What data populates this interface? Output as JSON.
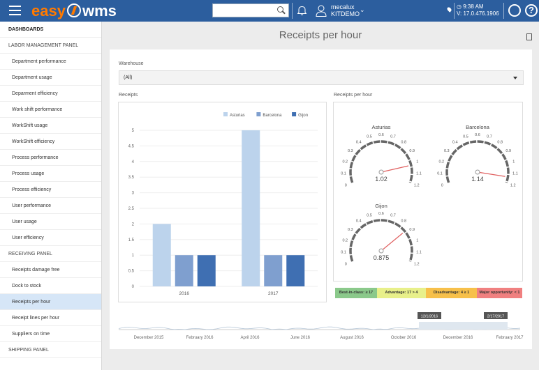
{
  "topbar": {
    "logo_easy": "easy",
    "logo_wms": "wms",
    "user_name": "mecalux",
    "user_company": "KITDEMO",
    "time": "9:38 AM",
    "version": "V: 17.0.476.1906"
  },
  "sidebar": {
    "items": [
      {
        "label": "DASHBOARDS",
        "kind": "header"
      },
      {
        "label": "LABOR MANAGEMENT PANEL",
        "kind": "section"
      },
      {
        "label": "Department performance",
        "kind": "item"
      },
      {
        "label": "Department usage",
        "kind": "item"
      },
      {
        "label": "Deparment efficiency",
        "kind": "item"
      },
      {
        "label": "Work shift performance",
        "kind": "item"
      },
      {
        "label": "WorkShift usage",
        "kind": "item"
      },
      {
        "label": "WorkShift efficiency",
        "kind": "item"
      },
      {
        "label": "Process performance",
        "kind": "item"
      },
      {
        "label": "Process usage",
        "kind": "item"
      },
      {
        "label": "Process efficiency",
        "kind": "item"
      },
      {
        "label": "User performance",
        "kind": "item"
      },
      {
        "label": "User usage",
        "kind": "item"
      },
      {
        "label": "User efficiency",
        "kind": "item"
      },
      {
        "label": "RECEIVING PANEL",
        "kind": "section"
      },
      {
        "label": "Receipts damage free",
        "kind": "item"
      },
      {
        "label": "Dock to stock",
        "kind": "item"
      },
      {
        "label": "Receipts per hour",
        "kind": "item",
        "active": true
      },
      {
        "label": "Receipt lines per hour",
        "kind": "item"
      },
      {
        "label": "Suppliers on time",
        "kind": "item"
      },
      {
        "label": "SHIPPING PANEL",
        "kind": "section"
      }
    ]
  },
  "main": {
    "title": "Receipts per hour",
    "warehouse_label": "Warehouse",
    "warehouse_value": "(All)",
    "receipts_label": "Receipts",
    "gauges_label": "Receipts per hour"
  },
  "chart_data": [
    {
      "type": "bar",
      "title": "Receipts",
      "categories": [
        "2016",
        "2017"
      ],
      "series": [
        {
          "name": "Asturias",
          "values": [
            2,
            5
          ],
          "color": "#bcd3ec"
        },
        {
          "name": "Barcelona",
          "values": [
            1,
            1
          ],
          "color": "#7f9fcf"
        },
        {
          "name": "Gijon",
          "values": [
            1,
            1
          ],
          "color": "#3f6fb2"
        }
      ],
      "ylim": [
        0,
        5
      ],
      "yticks": [
        "0",
        "0.5",
        "1",
        "1.5",
        "2",
        "2.5",
        "3",
        "3.5",
        "4",
        "4.5",
        "5"
      ],
      "legend": "top-right"
    },
    {
      "type": "gauge",
      "title": "Receipts per hour",
      "range": [
        0,
        1.2
      ],
      "ticks": [
        "0",
        "0.1",
        "0.2",
        "0.3",
        "0.4",
        "0.5",
        "0.6",
        "0.7",
        "0.8",
        "0.9",
        "1",
        "1.1",
        "1.2"
      ],
      "gauges": [
        {
          "name": "Asturias",
          "value": 1.02,
          "label": "1.02"
        },
        {
          "name": "Barcelona",
          "value": 1.14,
          "label": "1.14"
        },
        {
          "name": "Gijon",
          "value": 0.875,
          "label": "0.875"
        }
      ]
    }
  ],
  "legend_strip": [
    {
      "label": "Best-in-class: ≥ 17",
      "color": "#8bc98b"
    },
    {
      "label": "Advantage: 17 > 4",
      "color": "#e8f08a"
    },
    {
      "label": "Disadvantage: 4 ≥ 1",
      "color": "#f7c04a"
    },
    {
      "label": "Major opportunity: < 1",
      "color": "#f08080"
    }
  ],
  "timeline": {
    "labels": [
      "December 2015",
      "February 2016",
      "April 2016",
      "June 2016",
      "August 2016",
      "October 2016",
      "December 2016",
      "February 2017"
    ],
    "range_start": "12/1/2016",
    "range_end": "2/17/2017"
  },
  "colors": {
    "topbar": "#2c5e9e",
    "brand_orange": "#ff7a00",
    "active_item": "#d6e6f7"
  }
}
